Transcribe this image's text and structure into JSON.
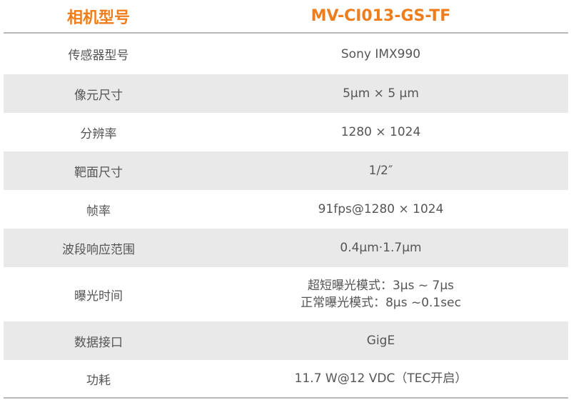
{
  "header": {
    "label": "相机型号",
    "value": "MV-CI013-GS-TF"
  },
  "colors": {
    "accent": "#ef7d1b",
    "stripe": "#e9e9e9",
    "text": "#555555"
  },
  "rows": [
    {
      "label": "传感器型号",
      "value": "Sony IMX990"
    },
    {
      "label": "像元尺寸",
      "value": "5μm × 5 μm"
    },
    {
      "label": "分辨率",
      "value": "1280 × 1024"
    },
    {
      "label": "靶面尺寸",
      "value": "1/2″"
    },
    {
      "label": "帧率",
      "value": "91fps@1280 × 1024"
    },
    {
      "label": "波段响应范围",
      "value": "0.4μm·1.7μm"
    },
    {
      "label": "曝光时间",
      "value": "超短曝光模式：3μs ~ 7μs",
      "value2": "正常曝光模式：8μs ~0.1sec"
    },
    {
      "label": "数据接口",
      "value": "GigE"
    },
    {
      "label": "功耗",
      "value": "11.7 W@12 VDC（TEC开启）"
    }
  ]
}
